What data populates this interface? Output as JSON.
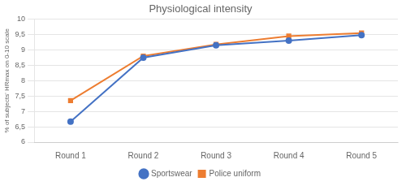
{
  "chart_data": {
    "type": "line",
    "title": "Physiological intensity",
    "ylabel": "% of subjects' HRmax on 0-10 scale",
    "categories": [
      "Round 1",
      "Round 2",
      "Round 3",
      "Round 4",
      "Round 5"
    ],
    "series": [
      {
        "name": "Sportswear",
        "color": "#4472C4",
        "marker": "circle",
        "values": [
          6.67,
          8.75,
          9.15,
          9.3,
          9.48
        ]
      },
      {
        "name": "Police uniform",
        "color": "#ED7D31",
        "marker": "square",
        "values": [
          7.35,
          8.8,
          9.18,
          9.45,
          9.55
        ]
      }
    ],
    "ylim": [
      6,
      10
    ],
    "yticks": [
      6,
      {
        "value": 6.5,
        "label": "6,5"
      },
      7,
      {
        "value": 7.5,
        "label": "7,5"
      },
      8,
      {
        "value": 8.5,
        "label": "8,5"
      },
      9,
      {
        "value": 9.5,
        "label": "9,5"
      },
      10
    ],
    "grid": "y",
    "legend": "bottom"
  }
}
